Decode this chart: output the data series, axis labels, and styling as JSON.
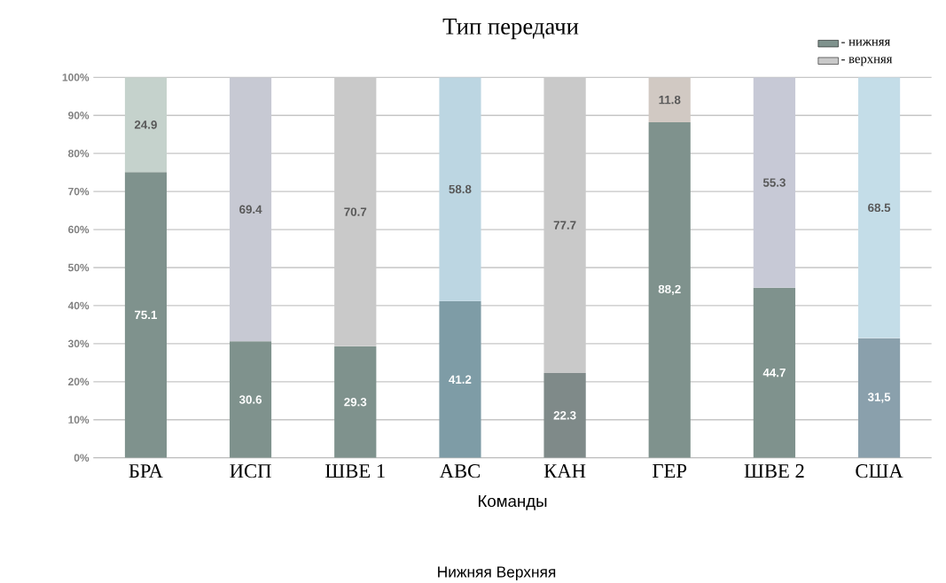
{
  "chart_data": {
    "type": "bar",
    "stacked": true,
    "title": "Тип передачи",
    "xlabel": "Команды",
    "categories": [
      "БРА",
      "ИСП",
      "ШВЕ 1",
      "АВС",
      "КАН",
      "ГЕР",
      "ШВЕ 2",
      "США"
    ],
    "series": [
      {
        "name": "- нижняя",
        "color": "#7f928d",
        "colors": [
          "#7f928d",
          "#7f928d",
          "#7f928d",
          "#7e9ca6",
          "#7f8a89",
          "#7f928d",
          "#7f928d",
          "#8aa0ac"
        ],
        "values": [
          75.1,
          30.6,
          29.3,
          41.2,
          22.3,
          88.2,
          44.7,
          31.5
        ],
        "value_labels": [
          "75.1",
          "30.6",
          "29.3",
          "41.2",
          "22.3",
          "88,2",
          "44.7",
          "31,5"
        ]
      },
      {
        "name": "- верхняя",
        "color": "#c9c9c9",
        "colors": [
          "#c5d2cc",
          "#c7c9d3",
          "#c9c9c9",
          "#bcd6e2",
          "#c9c9c9",
          "#d1c9c3",
          "#c7c9d6",
          "#c4dde8"
        ],
        "values": [
          24.9,
          69.4,
          70.7,
          58.8,
          77.7,
          11.8,
          55.3,
          68.5
        ],
        "value_labels": [
          "24.9",
          "69.4",
          "70.7",
          "58.8",
          "77.7",
          "11.8",
          "55.3",
          "68.5"
        ]
      }
    ],
    "ylim": [
      0,
      100
    ],
    "yticks": [
      {
        "value": 0,
        "label": "0%"
      },
      {
        "value": 10,
        "label": "10%"
      },
      {
        "value": 20,
        "label": "20%"
      },
      {
        "value": 30,
        "label": "30%"
      },
      {
        "value": 40,
        "label": "40%"
      },
      {
        "value": 50,
        "label": "50%"
      },
      {
        "value": 60,
        "label": "60%"
      },
      {
        "value": 70,
        "label": "70%"
      },
      {
        "value": 80,
        "label": "80%"
      },
      {
        "value": 90,
        "label": "90%"
      },
      {
        "value": 100,
        "label": "100%"
      }
    ],
    "grid": "y",
    "legend": "top right",
    "annotations": [
      "Нижняя   Верхняя"
    ]
  }
}
